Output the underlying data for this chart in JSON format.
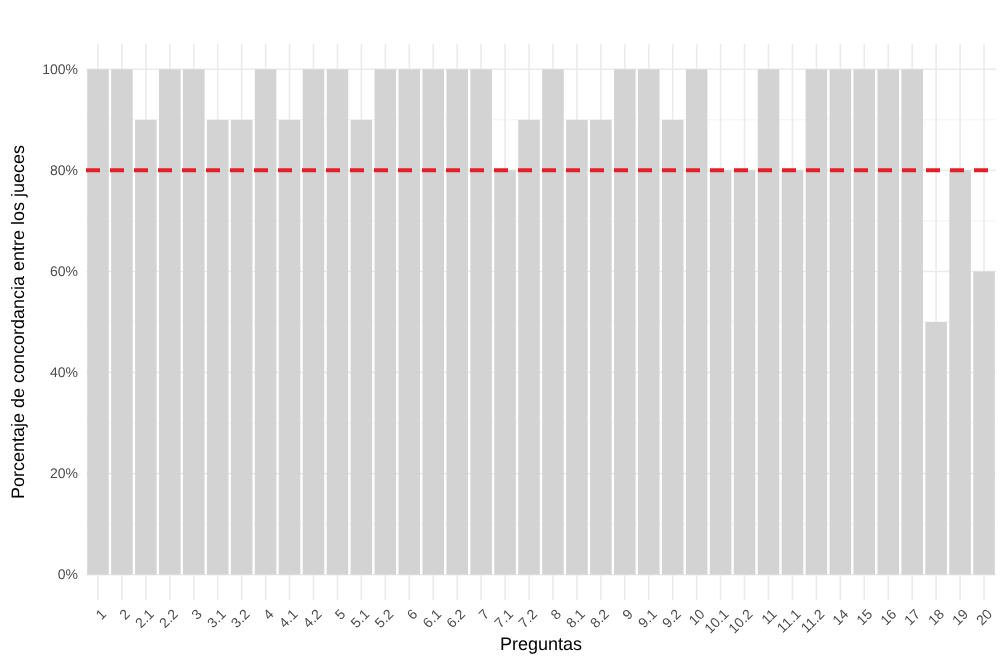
{
  "chart_data": {
    "type": "bar",
    "xlabel": "Preguntas",
    "ylabel": "Porcentaje de concordancia entre los jueces",
    "categories": [
      "1",
      "2",
      "2.1",
      "2.2",
      "3",
      "3.1",
      "3.2",
      "4",
      "4.1",
      "4.2",
      "5",
      "5.1",
      "5.2",
      "6",
      "6.1",
      "6.2",
      "7",
      "7.1",
      "7.2",
      "8",
      "8.1",
      "8.2",
      "9",
      "9.1",
      "9.2",
      "10",
      "10.1",
      "10.2",
      "11",
      "11.1",
      "11.2",
      "14",
      "15",
      "16",
      "17",
      "18",
      "19",
      "20"
    ],
    "values": [
      100,
      100,
      90,
      100,
      100,
      90,
      90,
      100,
      90,
      100,
      100,
      90,
      100,
      100,
      100,
      100,
      100,
      80,
      90,
      100,
      90,
      90,
      100,
      100,
      90,
      100,
      80,
      80,
      100,
      80,
      100,
      100,
      100,
      100,
      100,
      50,
      80,
      60
    ],
    "color": "#d3d3d3",
    "ylim": [
      -5,
      105
    ],
    "yticks": [
      {
        "value": 0,
        "label": "0%"
      },
      {
        "value": 20,
        "label": "20%"
      },
      {
        "value": 40,
        "label": "40%"
      },
      {
        "value": 60,
        "label": "60%"
      },
      {
        "value": 80,
        "label": "80%"
      },
      {
        "value": 100,
        "label": "100%"
      }
    ],
    "grid": true,
    "ref_lines": [
      {
        "axis": "y",
        "value": 80,
        "color": "#e3202a",
        "line_style": "dashed"
      }
    ]
  }
}
